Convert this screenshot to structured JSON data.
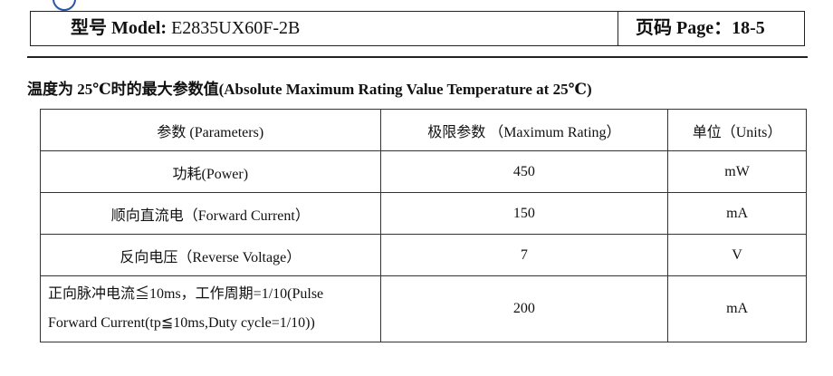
{
  "header": {
    "model_label": "型号 Model:",
    "model": "E2835UX60F-2B",
    "page_label": "页码 Page：",
    "page": "18-5"
  },
  "section": {
    "title": "温度为 25℃时的最大参数值(Absolute Maximum Rating Value Temperature at 25℃)"
  },
  "table": {
    "header": [
      "参数 (Parameters)",
      "极限参数 （Maximum Rating）",
      "单位（Units）"
    ],
    "rows": [
      [
        [
          "功耗(Power)"
        ],
        450,
        "mW"
      ],
      [
        [
          "顺向直流电（Forward Current）"
        ],
        150,
        "mA"
      ],
      [
        [
          "反向电压（Reverse Voltage）"
        ],
        7,
        "V"
      ],
      [
        [
          "正向脉冲电流≦10ms，工作周期=1/10(Pulse",
          "Forward Current(tp≦10ms,Duty cycle=1/10))"
        ],
        200,
        "mA"
      ]
    ]
  }
}
